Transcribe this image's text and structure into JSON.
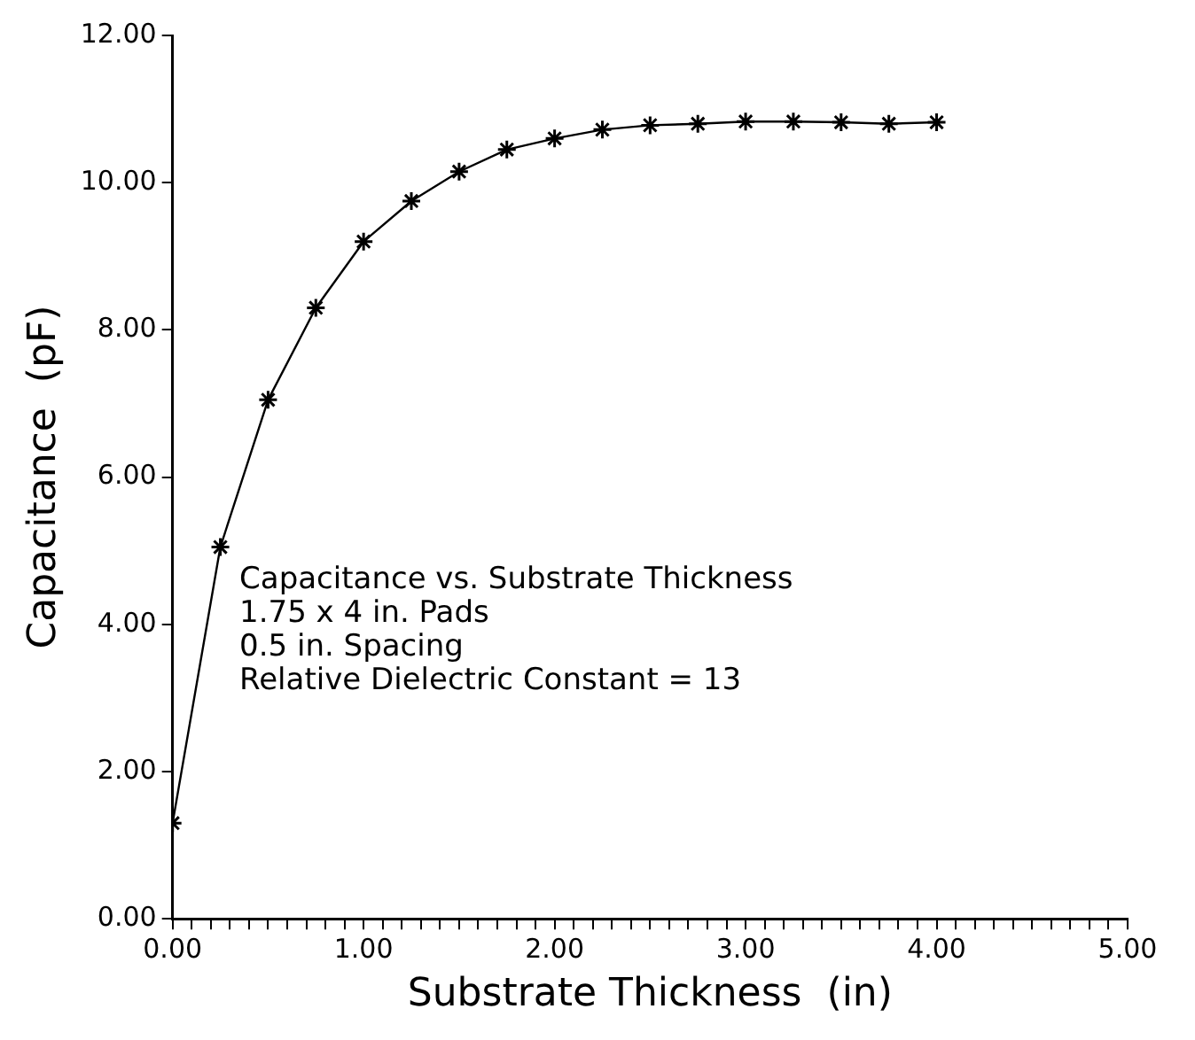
{
  "chart_data": {
    "type": "line",
    "xlabel": "Substrate Thickness  (in)",
    "ylabel": "Capacitance  (pF)",
    "x": [
      0,
      0.25,
      0.5,
      0.75,
      1,
      1.25,
      1.5,
      1.75,
      2,
      2.25,
      2.5,
      2.75,
      3,
      3.25,
      3.5,
      3.75,
      4
    ],
    "series": [
      {
        "color": "#000000",
        "values": [
          1.3,
          5.05,
          7.05,
          8.3,
          9.2,
          9.75,
          10.15,
          10.45,
          10.6,
          10.72,
          10.78,
          10.8,
          10.83,
          10.83,
          10.82,
          10.8,
          10.82
        ]
      }
    ],
    "xlim": [
      0,
      5
    ],
    "xticks": [
      {
        "value": 0,
        "label": "0.00"
      },
      {
        "value": 0.1,
        "label": null
      },
      {
        "value": 0.2,
        "label": null
      },
      {
        "value": 0.3,
        "label": null
      },
      {
        "value": 0.4,
        "label": null
      },
      {
        "value": 0.5,
        "label": null
      },
      {
        "value": 0.6,
        "label": null
      },
      {
        "value": 0.7,
        "label": null
      },
      {
        "value": 0.8,
        "label": null
      },
      {
        "value": 0.9,
        "label": null
      },
      {
        "value": 1,
        "label": "1.00"
      },
      {
        "value": 1.1,
        "label": null
      },
      {
        "value": 1.2,
        "label": null
      },
      {
        "value": 1.3,
        "label": null
      },
      {
        "value": 1.4,
        "label": null
      },
      {
        "value": 1.5,
        "label": null
      },
      {
        "value": 1.6,
        "label": null
      },
      {
        "value": 1.7,
        "label": null
      },
      {
        "value": 1.8,
        "label": null
      },
      {
        "value": 1.9,
        "label": null
      },
      {
        "value": 2,
        "label": "2.00"
      },
      {
        "value": 2.1,
        "label": null
      },
      {
        "value": 2.2,
        "label": null
      },
      {
        "value": 2.3,
        "label": null
      },
      {
        "value": 2.4,
        "label": null
      },
      {
        "value": 2.5,
        "label": null
      },
      {
        "value": 2.6,
        "label": null
      },
      {
        "value": 2.7,
        "label": null
      },
      {
        "value": 2.8,
        "label": null
      },
      {
        "value": 2.9,
        "label": null
      },
      {
        "value": 3,
        "label": "3.00"
      },
      {
        "value": 3.1,
        "label": null
      },
      {
        "value": 3.2,
        "label": null
      },
      {
        "value": 3.3,
        "label": null
      },
      {
        "value": 3.4,
        "label": null
      },
      {
        "value": 3.5,
        "label": null
      },
      {
        "value": 3.6,
        "label": null
      },
      {
        "value": 3.7,
        "label": null
      },
      {
        "value": 3.8,
        "label": null
      },
      {
        "value": 3.9,
        "label": null
      },
      {
        "value": 4,
        "label": "4.00"
      },
      {
        "value": 4.1,
        "label": null
      },
      {
        "value": 4.2,
        "label": null
      },
      {
        "value": 4.3,
        "label": null
      },
      {
        "value": 4.4,
        "label": null
      },
      {
        "value": 4.5,
        "label": null
      },
      {
        "value": 4.6,
        "label": null
      },
      {
        "value": 4.7,
        "label": null
      },
      {
        "value": 4.8,
        "label": null
      },
      {
        "value": 4.9,
        "label": null
      },
      {
        "value": 5,
        "label": "5.00"
      }
    ],
    "ylim": [
      0,
      12
    ],
    "yticks": [
      {
        "value": 0,
        "label": "0.00"
      },
      {
        "value": 2,
        "label": "2.00"
      },
      {
        "value": 4,
        "label": "4.00"
      },
      {
        "value": 6,
        "label": "6.00"
      },
      {
        "value": 8,
        "label": "8.00"
      },
      {
        "value": 10,
        "label": "10.00"
      },
      {
        "value": 12,
        "label": "12.00"
      }
    ],
    "annotations": [
      "Capacitance vs. Substrate Thickness",
      "1.75 x 4 in. Pads",
      "0.5 in. Spacing",
      "Relative Dielectric Constant = 13"
    ],
    "marker": "cross",
    "line_style": "solid",
    "grid": false,
    "legend": false
  }
}
